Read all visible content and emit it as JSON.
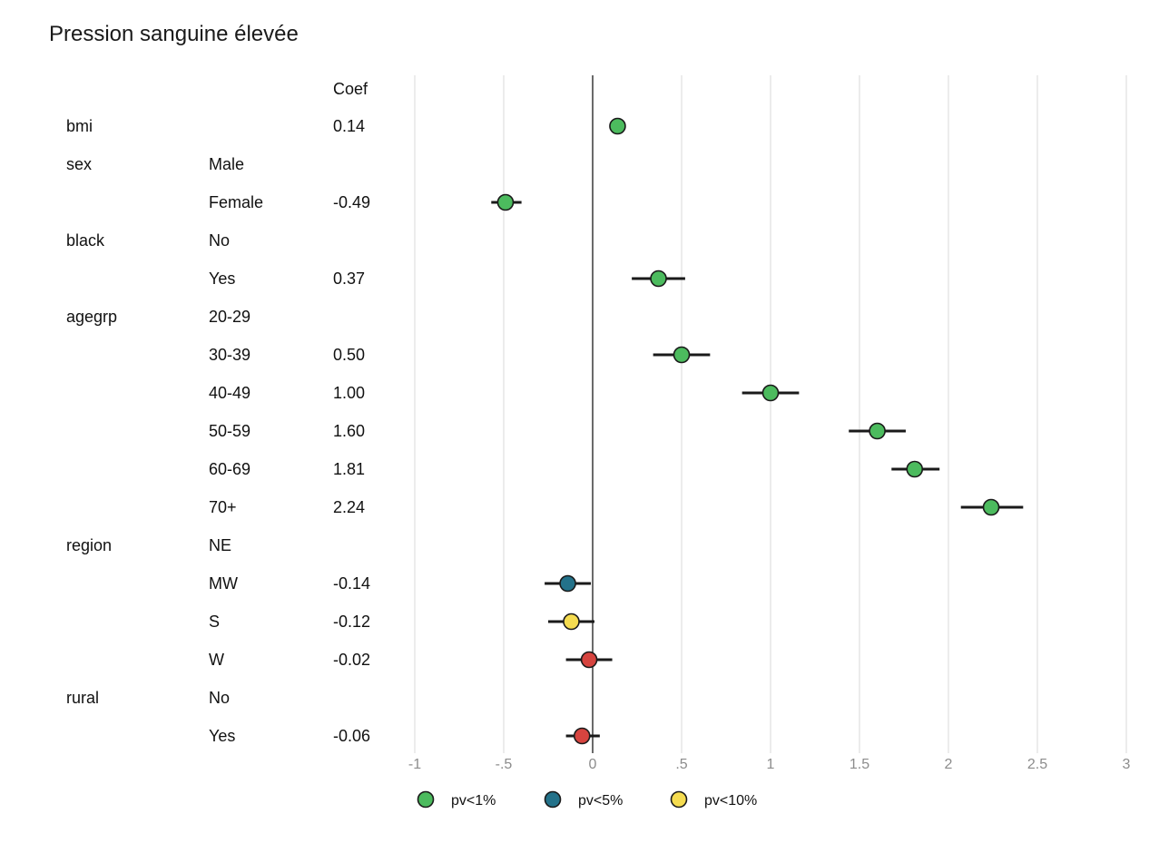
{
  "chart_data": {
    "type": "scatter",
    "title": "Pression sanguine élevée",
    "coef_header": "Coef",
    "xlim": [
      -1,
      3
    ],
    "x_ticks": [
      -1,
      -0.5,
      0,
      0.5,
      1,
      1.5,
      2,
      2.5,
      3
    ],
    "x_tick_labels": [
      "-1",
      "-.5",
      "0",
      ".5",
      "1",
      "1.5",
      "2",
      "2.5",
      "3"
    ],
    "grid": "vertical",
    "legend_position": "bottom",
    "colors": {
      "pv<1%": "#4cbb5e",
      "pv<5%": "#23728a",
      "pv<10%": "#f5dc50",
      "other": "#d6443f"
    },
    "legend": [
      {
        "label": "pv<1%",
        "key": "pv<1%"
      },
      {
        "label": "pv<5%",
        "key": "pv<5%"
      },
      {
        "label": "pv<10%",
        "key": "pv<10%"
      }
    ],
    "rows": [
      {
        "variable": "bmi",
        "level": "",
        "coef": "0.14",
        "value": 0.14,
        "ci": [
          0.14,
          0.14
        ],
        "pv": "pv<1%"
      },
      {
        "variable": "sex",
        "level": "Male",
        "coef": "",
        "value": null,
        "ci": null,
        "pv": null
      },
      {
        "variable": "",
        "level": "Female",
        "coef": "-0.49",
        "value": -0.49,
        "ci": [
          -0.57,
          -0.4
        ],
        "pv": "pv<1%"
      },
      {
        "variable": "black",
        "level": "No",
        "coef": "",
        "value": null,
        "ci": null,
        "pv": null
      },
      {
        "variable": "",
        "level": "Yes",
        "coef": "0.37",
        "value": 0.37,
        "ci": [
          0.22,
          0.52
        ],
        "pv": "pv<1%"
      },
      {
        "variable": "agegrp",
        "level": "20-29",
        "coef": "",
        "value": null,
        "ci": null,
        "pv": null
      },
      {
        "variable": "",
        "level": "30-39",
        "coef": "0.50",
        "value": 0.5,
        "ci": [
          0.34,
          0.66
        ],
        "pv": "pv<1%"
      },
      {
        "variable": "",
        "level": "40-49",
        "coef": "1.00",
        "value": 1.0,
        "ci": [
          0.84,
          1.16
        ],
        "pv": "pv<1%"
      },
      {
        "variable": "",
        "level": "50-59",
        "coef": "1.60",
        "value": 1.6,
        "ci": [
          1.44,
          1.76
        ],
        "pv": "pv<1%"
      },
      {
        "variable": "",
        "level": "60-69",
        "coef": "1.81",
        "value": 1.81,
        "ci": [
          1.68,
          1.95
        ],
        "pv": "pv<1%"
      },
      {
        "variable": "",
        "level": "70+",
        "coef": "2.24",
        "value": 2.24,
        "ci": [
          2.07,
          2.42
        ],
        "pv": "pv<1%"
      },
      {
        "variable": "region",
        "level": "NE",
        "coef": "",
        "value": null,
        "ci": null,
        "pv": null
      },
      {
        "variable": "",
        "level": "MW",
        "coef": "-0.14",
        "value": -0.14,
        "ci": [
          -0.27,
          -0.01
        ],
        "pv": "pv<5%"
      },
      {
        "variable": "",
        "level": "S",
        "coef": "-0.12",
        "value": -0.12,
        "ci": [
          -0.25,
          0.01
        ],
        "pv": "pv<10%"
      },
      {
        "variable": "",
        "level": "W",
        "coef": "-0.02",
        "value": -0.02,
        "ci": [
          -0.15,
          0.11
        ],
        "pv": "other"
      },
      {
        "variable": "rural",
        "level": "No",
        "coef": "",
        "value": null,
        "ci": null,
        "pv": null
      },
      {
        "variable": "",
        "level": "Yes",
        "coef": "-0.06",
        "value": -0.06,
        "ci": [
          -0.15,
          0.04
        ],
        "pv": "other"
      }
    ]
  }
}
